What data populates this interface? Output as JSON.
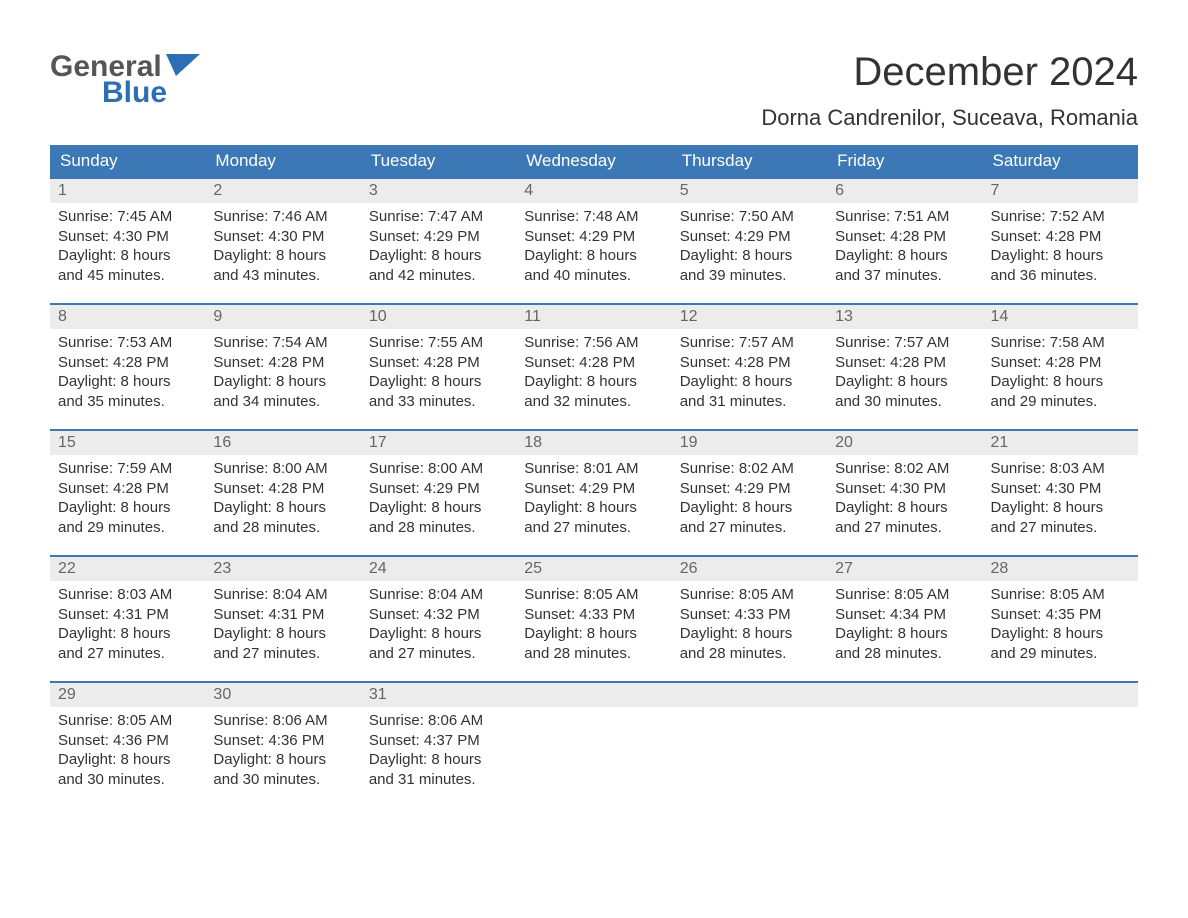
{
  "logo": {
    "word1": "General",
    "word2": "Blue",
    "flag_color": "#2d6fb3"
  },
  "title": "December 2024",
  "location": "Dorna Candrenilor, Suceava, Romania",
  "colors": {
    "header_bg": "#3b78b5",
    "header_text": "#ffffff",
    "daynum_bg": "#ececec",
    "daynum_text": "#666666",
    "text": "#333333",
    "week_border": "#3b78b5",
    "page_bg": "#ffffff"
  },
  "typography": {
    "title_fontsize": 40,
    "location_fontsize": 22,
    "dow_fontsize": 17,
    "body_fontsize": 15,
    "daynum_fontsize": 16
  },
  "days_of_week": [
    "Sunday",
    "Monday",
    "Tuesday",
    "Wednesday",
    "Thursday",
    "Friday",
    "Saturday"
  ],
  "labels": {
    "sunrise": "Sunrise:",
    "sunset": "Sunset:",
    "daylight": "Daylight:"
  },
  "weeks": [
    [
      {
        "n": "1",
        "sunrise": "7:45 AM",
        "sunset": "4:30 PM",
        "dl1": "8 hours",
        "dl2": "and 45 minutes."
      },
      {
        "n": "2",
        "sunrise": "7:46 AM",
        "sunset": "4:30 PM",
        "dl1": "8 hours",
        "dl2": "and 43 minutes."
      },
      {
        "n": "3",
        "sunrise": "7:47 AM",
        "sunset": "4:29 PM",
        "dl1": "8 hours",
        "dl2": "and 42 minutes."
      },
      {
        "n": "4",
        "sunrise": "7:48 AM",
        "sunset": "4:29 PM",
        "dl1": "8 hours",
        "dl2": "and 40 minutes."
      },
      {
        "n": "5",
        "sunrise": "7:50 AM",
        "sunset": "4:29 PM",
        "dl1": "8 hours",
        "dl2": "and 39 minutes."
      },
      {
        "n": "6",
        "sunrise": "7:51 AM",
        "sunset": "4:28 PM",
        "dl1": "8 hours",
        "dl2": "and 37 minutes."
      },
      {
        "n": "7",
        "sunrise": "7:52 AM",
        "sunset": "4:28 PM",
        "dl1": "8 hours",
        "dl2": "and 36 minutes."
      }
    ],
    [
      {
        "n": "8",
        "sunrise": "7:53 AM",
        "sunset": "4:28 PM",
        "dl1": "8 hours",
        "dl2": "and 35 minutes."
      },
      {
        "n": "9",
        "sunrise": "7:54 AM",
        "sunset": "4:28 PM",
        "dl1": "8 hours",
        "dl2": "and 34 minutes."
      },
      {
        "n": "10",
        "sunrise": "7:55 AM",
        "sunset": "4:28 PM",
        "dl1": "8 hours",
        "dl2": "and 33 minutes."
      },
      {
        "n": "11",
        "sunrise": "7:56 AM",
        "sunset": "4:28 PM",
        "dl1": "8 hours",
        "dl2": "and 32 minutes."
      },
      {
        "n": "12",
        "sunrise": "7:57 AM",
        "sunset": "4:28 PM",
        "dl1": "8 hours",
        "dl2": "and 31 minutes."
      },
      {
        "n": "13",
        "sunrise": "7:57 AM",
        "sunset": "4:28 PM",
        "dl1": "8 hours",
        "dl2": "and 30 minutes."
      },
      {
        "n": "14",
        "sunrise": "7:58 AM",
        "sunset": "4:28 PM",
        "dl1": "8 hours",
        "dl2": "and 29 minutes."
      }
    ],
    [
      {
        "n": "15",
        "sunrise": "7:59 AM",
        "sunset": "4:28 PM",
        "dl1": "8 hours",
        "dl2": "and 29 minutes."
      },
      {
        "n": "16",
        "sunrise": "8:00 AM",
        "sunset": "4:28 PM",
        "dl1": "8 hours",
        "dl2": "and 28 minutes."
      },
      {
        "n": "17",
        "sunrise": "8:00 AM",
        "sunset": "4:29 PM",
        "dl1": "8 hours",
        "dl2": "and 28 minutes."
      },
      {
        "n": "18",
        "sunrise": "8:01 AM",
        "sunset": "4:29 PM",
        "dl1": "8 hours",
        "dl2": "and 27 minutes."
      },
      {
        "n": "19",
        "sunrise": "8:02 AM",
        "sunset": "4:29 PM",
        "dl1": "8 hours",
        "dl2": "and 27 minutes."
      },
      {
        "n": "20",
        "sunrise": "8:02 AM",
        "sunset": "4:30 PM",
        "dl1": "8 hours",
        "dl2": "and 27 minutes."
      },
      {
        "n": "21",
        "sunrise": "8:03 AM",
        "sunset": "4:30 PM",
        "dl1": "8 hours",
        "dl2": "and 27 minutes."
      }
    ],
    [
      {
        "n": "22",
        "sunrise": "8:03 AM",
        "sunset": "4:31 PM",
        "dl1": "8 hours",
        "dl2": "and 27 minutes."
      },
      {
        "n": "23",
        "sunrise": "8:04 AM",
        "sunset": "4:31 PM",
        "dl1": "8 hours",
        "dl2": "and 27 minutes."
      },
      {
        "n": "24",
        "sunrise": "8:04 AM",
        "sunset": "4:32 PM",
        "dl1": "8 hours",
        "dl2": "and 27 minutes."
      },
      {
        "n": "25",
        "sunrise": "8:05 AM",
        "sunset": "4:33 PM",
        "dl1": "8 hours",
        "dl2": "and 28 minutes."
      },
      {
        "n": "26",
        "sunrise": "8:05 AM",
        "sunset": "4:33 PM",
        "dl1": "8 hours",
        "dl2": "and 28 minutes."
      },
      {
        "n": "27",
        "sunrise": "8:05 AM",
        "sunset": "4:34 PM",
        "dl1": "8 hours",
        "dl2": "and 28 minutes."
      },
      {
        "n": "28",
        "sunrise": "8:05 AM",
        "sunset": "4:35 PM",
        "dl1": "8 hours",
        "dl2": "and 29 minutes."
      }
    ],
    [
      {
        "n": "29",
        "sunrise": "8:05 AM",
        "sunset": "4:36 PM",
        "dl1": "8 hours",
        "dl2": "and 30 minutes."
      },
      {
        "n": "30",
        "sunrise": "8:06 AM",
        "sunset": "4:36 PM",
        "dl1": "8 hours",
        "dl2": "and 30 minutes."
      },
      {
        "n": "31",
        "sunrise": "8:06 AM",
        "sunset": "4:37 PM",
        "dl1": "8 hours",
        "dl2": "and 31 minutes."
      },
      {
        "empty": true
      },
      {
        "empty": true
      },
      {
        "empty": true
      },
      {
        "empty": true
      }
    ]
  ]
}
